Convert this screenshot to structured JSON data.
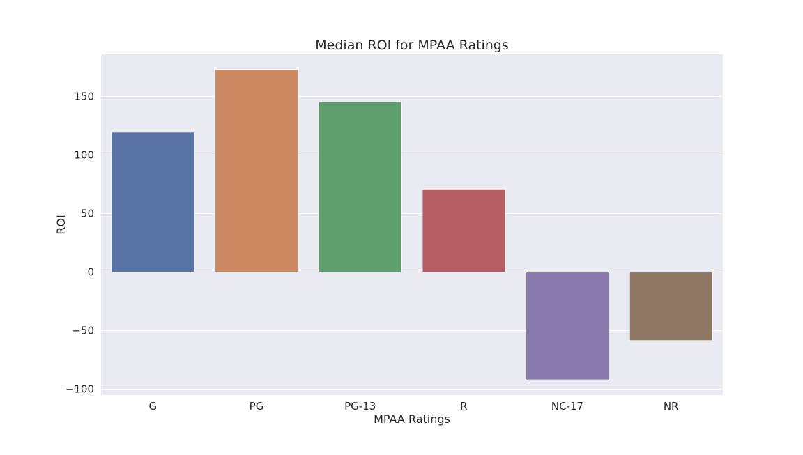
{
  "chart_data": {
    "type": "bar",
    "title": "Median ROI for MPAA Ratings",
    "xlabel": "MPAA Ratings",
    "ylabel": "ROI",
    "categories": [
      "G",
      "PG",
      "PG-13",
      "R",
      "NC-17",
      "NR"
    ],
    "values": [
      119.5,
      173,
      145.5,
      71,
      -92,
      -58.5
    ],
    "colors": [
      "#5874a6",
      "#cd8962",
      "#5f9f6e",
      "#b55d60",
      "#8879ad",
      "#8d7763"
    ],
    "ylim": [
      -105,
      186
    ],
    "yticks": [
      -100,
      -50,
      0,
      50,
      100,
      150
    ],
    "ytick_labels": [
      "−100",
      "−50",
      "0",
      "50",
      "100",
      "150"
    ],
    "grid": true,
    "background": "#eaeaf2"
  }
}
